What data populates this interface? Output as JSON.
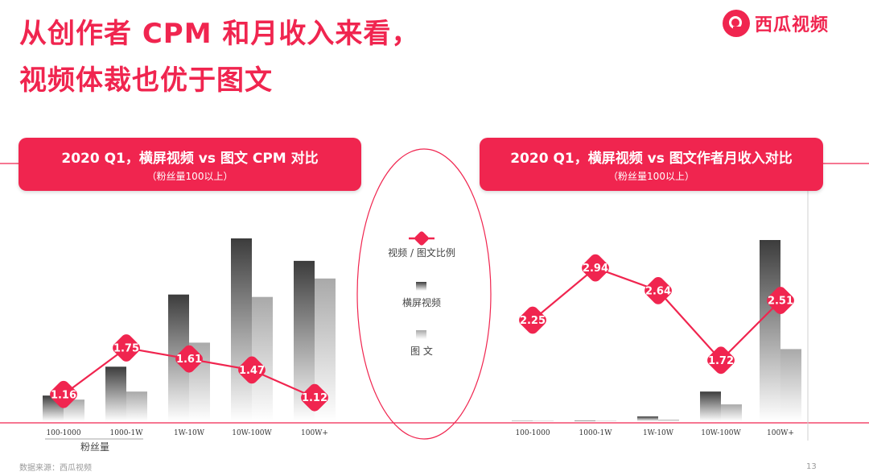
{
  "slide": {
    "title_line1": "从创作者 CPM 和月收入来看，",
    "title_line2": "视频体裁也优于图文",
    "logo_text": "西瓜视频",
    "source": "数据来源：西瓜视频",
    "page_number": "13",
    "accent_color": "#f0254f"
  },
  "legend": {
    "ratio_label": "视频 / 图文比例",
    "video_label": "横屏视频",
    "text_label": "图 文"
  },
  "chart_data": [
    {
      "type": "bar",
      "title": "2020 Q1，横屏视频 vs 图文 CPM 对比",
      "subtitle": "（粉丝量100以上）",
      "xlabel": "粉丝量",
      "categories": [
        "100-1000",
        "1000-1W",
        "1W-10W",
        "10W-100W",
        "100W+"
      ],
      "series": [
        {
          "name": "横屏视频",
          "values": [
            32,
            68,
            158,
            228,
            200
          ]
        },
        {
          "name": "图文",
          "values": [
            27,
            37,
            98,
            155,
            178
          ]
        }
      ],
      "ratio": {
        "name": "视频 / 图文比例",
        "values": [
          1.16,
          1.75,
          1.61,
          1.47,
          1.12
        ],
        "labels": [
          "1.16",
          "1.75",
          "1.61",
          "1.47",
          "1.12"
        ]
      },
      "ylim": [
        0,
        240
      ],
      "ratio_ylim": [
        0.8,
        3.2
      ]
    },
    {
      "type": "bar",
      "title": "2020 Q1，横屏视频 vs 图文作者月收入对比",
      "subtitle": "（粉丝量100以上）",
      "xlabel": "",
      "categories": [
        "100-1000",
        "1000-1W",
        "1W-10W",
        "10W-100W",
        "100W+"
      ],
      "series": [
        {
          "name": "横屏视频",
          "values": [
            0.1,
            1,
            6,
            37,
            226
          ]
        },
        {
          "name": "图文",
          "values": [
            0.05,
            0.5,
            2,
            21,
            90
          ]
        }
      ],
      "ratio": {
        "name": "视频 / 图文比例",
        "values": [
          2.25,
          2.94,
          2.64,
          1.72,
          2.51
        ],
        "labels": [
          "2.25",
          "2.94",
          "2.64",
          "1.72",
          "2.51"
        ]
      },
      "ylim": [
        0,
        240
      ],
      "ratio_ylim": [
        1.0,
        3.5
      ]
    }
  ]
}
